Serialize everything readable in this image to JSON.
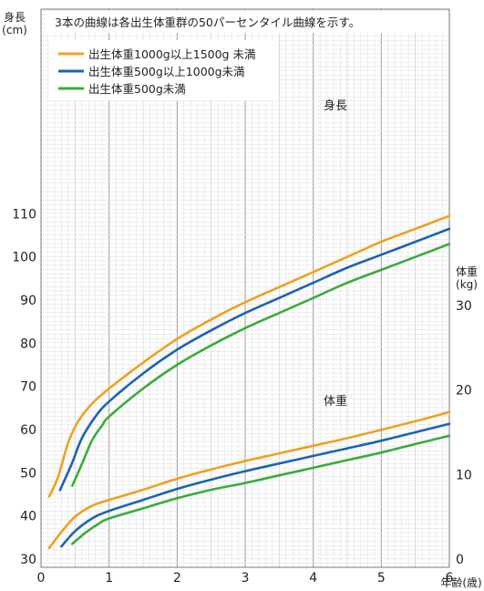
{
  "chart_data": {
    "type": "line",
    "note": "3本の曲線は各出生体重群の50パーセンタイル曲線を示す。",
    "y_left_label_line1": "身長",
    "y_left_label_line2": "(cm)",
    "y_right_label_line1": "体重",
    "y_right_label_line2": "(kg)",
    "x_label": "年齢(歳)",
    "xlim": [
      0,
      6
    ],
    "x_ticks": [
      0,
      1,
      2,
      3,
      4,
      5,
      6
    ],
    "height_axis": {
      "lim": [
        25,
        120
      ],
      "ticks": [
        30,
        40,
        50,
        60,
        70,
        80,
        90,
        100,
        110
      ]
    },
    "weight_axis": {
      "lim": [
        0,
        35
      ],
      "ticks": [
        0,
        10,
        20,
        30
      ]
    },
    "groups": [
      {
        "name": "出生体重1000g以上1500g 未満",
        "color": "#f0a020"
      },
      {
        "name": "出生体重500g以上1000g未満",
        "color": "#1a64b4"
      },
      {
        "name": "出生体重500g未満",
        "color": "#3aac3a"
      }
    ],
    "panels": [
      {
        "label": "身長",
        "axis": "height",
        "series": [
          {
            "group": 0,
            "points": [
              [
                0.12,
                44.5
              ],
              [
                0.25,
                49
              ],
              [
                0.4,
                57
              ],
              [
                0.55,
                62
              ],
              [
                0.75,
                66
              ],
              [
                1,
                69.5
              ],
              [
                1.5,
                75.5
              ],
              [
                2,
                81
              ],
              [
                2.5,
                85.5
              ],
              [
                3,
                89.5
              ],
              [
                3.5,
                93
              ],
              [
                4,
                96.5
              ],
              [
                4.5,
                100
              ],
              [
                5,
                103.5
              ],
              [
                5.5,
                106.5
              ],
              [
                6,
                109.5
              ]
            ]
          },
          {
            "group": 1,
            "points": [
              [
                0.28,
                46
              ],
              [
                0.45,
                52
              ],
              [
                0.6,
                58
              ],
              [
                0.8,
                63
              ],
              [
                1,
                66.5
              ],
              [
                1.5,
                73
              ],
              [
                2,
                78.5
              ],
              [
                2.5,
                83
              ],
              [
                3,
                87
              ],
              [
                3.5,
                90.5
              ],
              [
                4,
                94
              ],
              [
                4.5,
                97.5
              ],
              [
                5,
                100.5
              ],
              [
                5.5,
                103.5
              ],
              [
                6,
                106.5
              ]
            ]
          },
          {
            "group": 2,
            "points": [
              [
                0.46,
                47
              ],
              [
                0.6,
                52
              ],
              [
                0.75,
                57.5
              ],
              [
                0.9,
                61
              ],
              [
                1,
                63
              ],
              [
                1.5,
                69.5
              ],
              [
                2,
                75
              ],
              [
                2.5,
                79.5
              ],
              [
                3,
                83.5
              ],
              [
                3.5,
                87
              ],
              [
                4,
                90.5
              ],
              [
                4.5,
                94
              ],
              [
                5,
                97
              ],
              [
                5.5,
                100
              ],
              [
                6,
                103
              ]
            ]
          }
        ]
      },
      {
        "label": "体重",
        "axis": "weight",
        "series": [
          {
            "group": 0,
            "points": [
              [
                0.12,
                1.3
              ],
              [
                0.3,
                3.2
              ],
              [
                0.5,
                5
              ],
              [
                0.75,
                6.3
              ],
              [
                1,
                7
              ],
              [
                1.5,
                8.2
              ],
              [
                2,
                9.5
              ],
              [
                2.5,
                10.6
              ],
              [
                3,
                11.6
              ],
              [
                3.5,
                12.5
              ],
              [
                4,
                13.4
              ],
              [
                4.5,
                14.3
              ],
              [
                5,
                15.3
              ],
              [
                5.5,
                16.3
              ],
              [
                6,
                17.4
              ]
            ]
          },
          {
            "group": 1,
            "points": [
              [
                0.3,
                1.5
              ],
              [
                0.5,
                3.3
              ],
              [
                0.75,
                4.8
              ],
              [
                1,
                5.7
              ],
              [
                1.5,
                7
              ],
              [
                2,
                8.3
              ],
              [
                2.5,
                9.4
              ],
              [
                3,
                10.4
              ],
              [
                3.5,
                11.3
              ],
              [
                4,
                12.2
              ],
              [
                4.5,
                13.1
              ],
              [
                5,
                14
              ],
              [
                5.5,
                15
              ],
              [
                6,
                16
              ]
            ]
          },
          {
            "group": 2,
            "points": [
              [
                0.46,
                1.8
              ],
              [
                0.65,
                3.1
              ],
              [
                0.85,
                4.2
              ],
              [
                1,
                4.8
              ],
              [
                1.5,
                6
              ],
              [
                2,
                7.2
              ],
              [
                2.5,
                8.2
              ],
              [
                3,
                9
              ],
              [
                3.5,
                9.9
              ],
              [
                4,
                10.8
              ],
              [
                4.5,
                11.7
              ],
              [
                5,
                12.6
              ],
              [
                5.5,
                13.6
              ],
              [
                6,
                14.6
              ]
            ]
          }
        ]
      }
    ]
  }
}
